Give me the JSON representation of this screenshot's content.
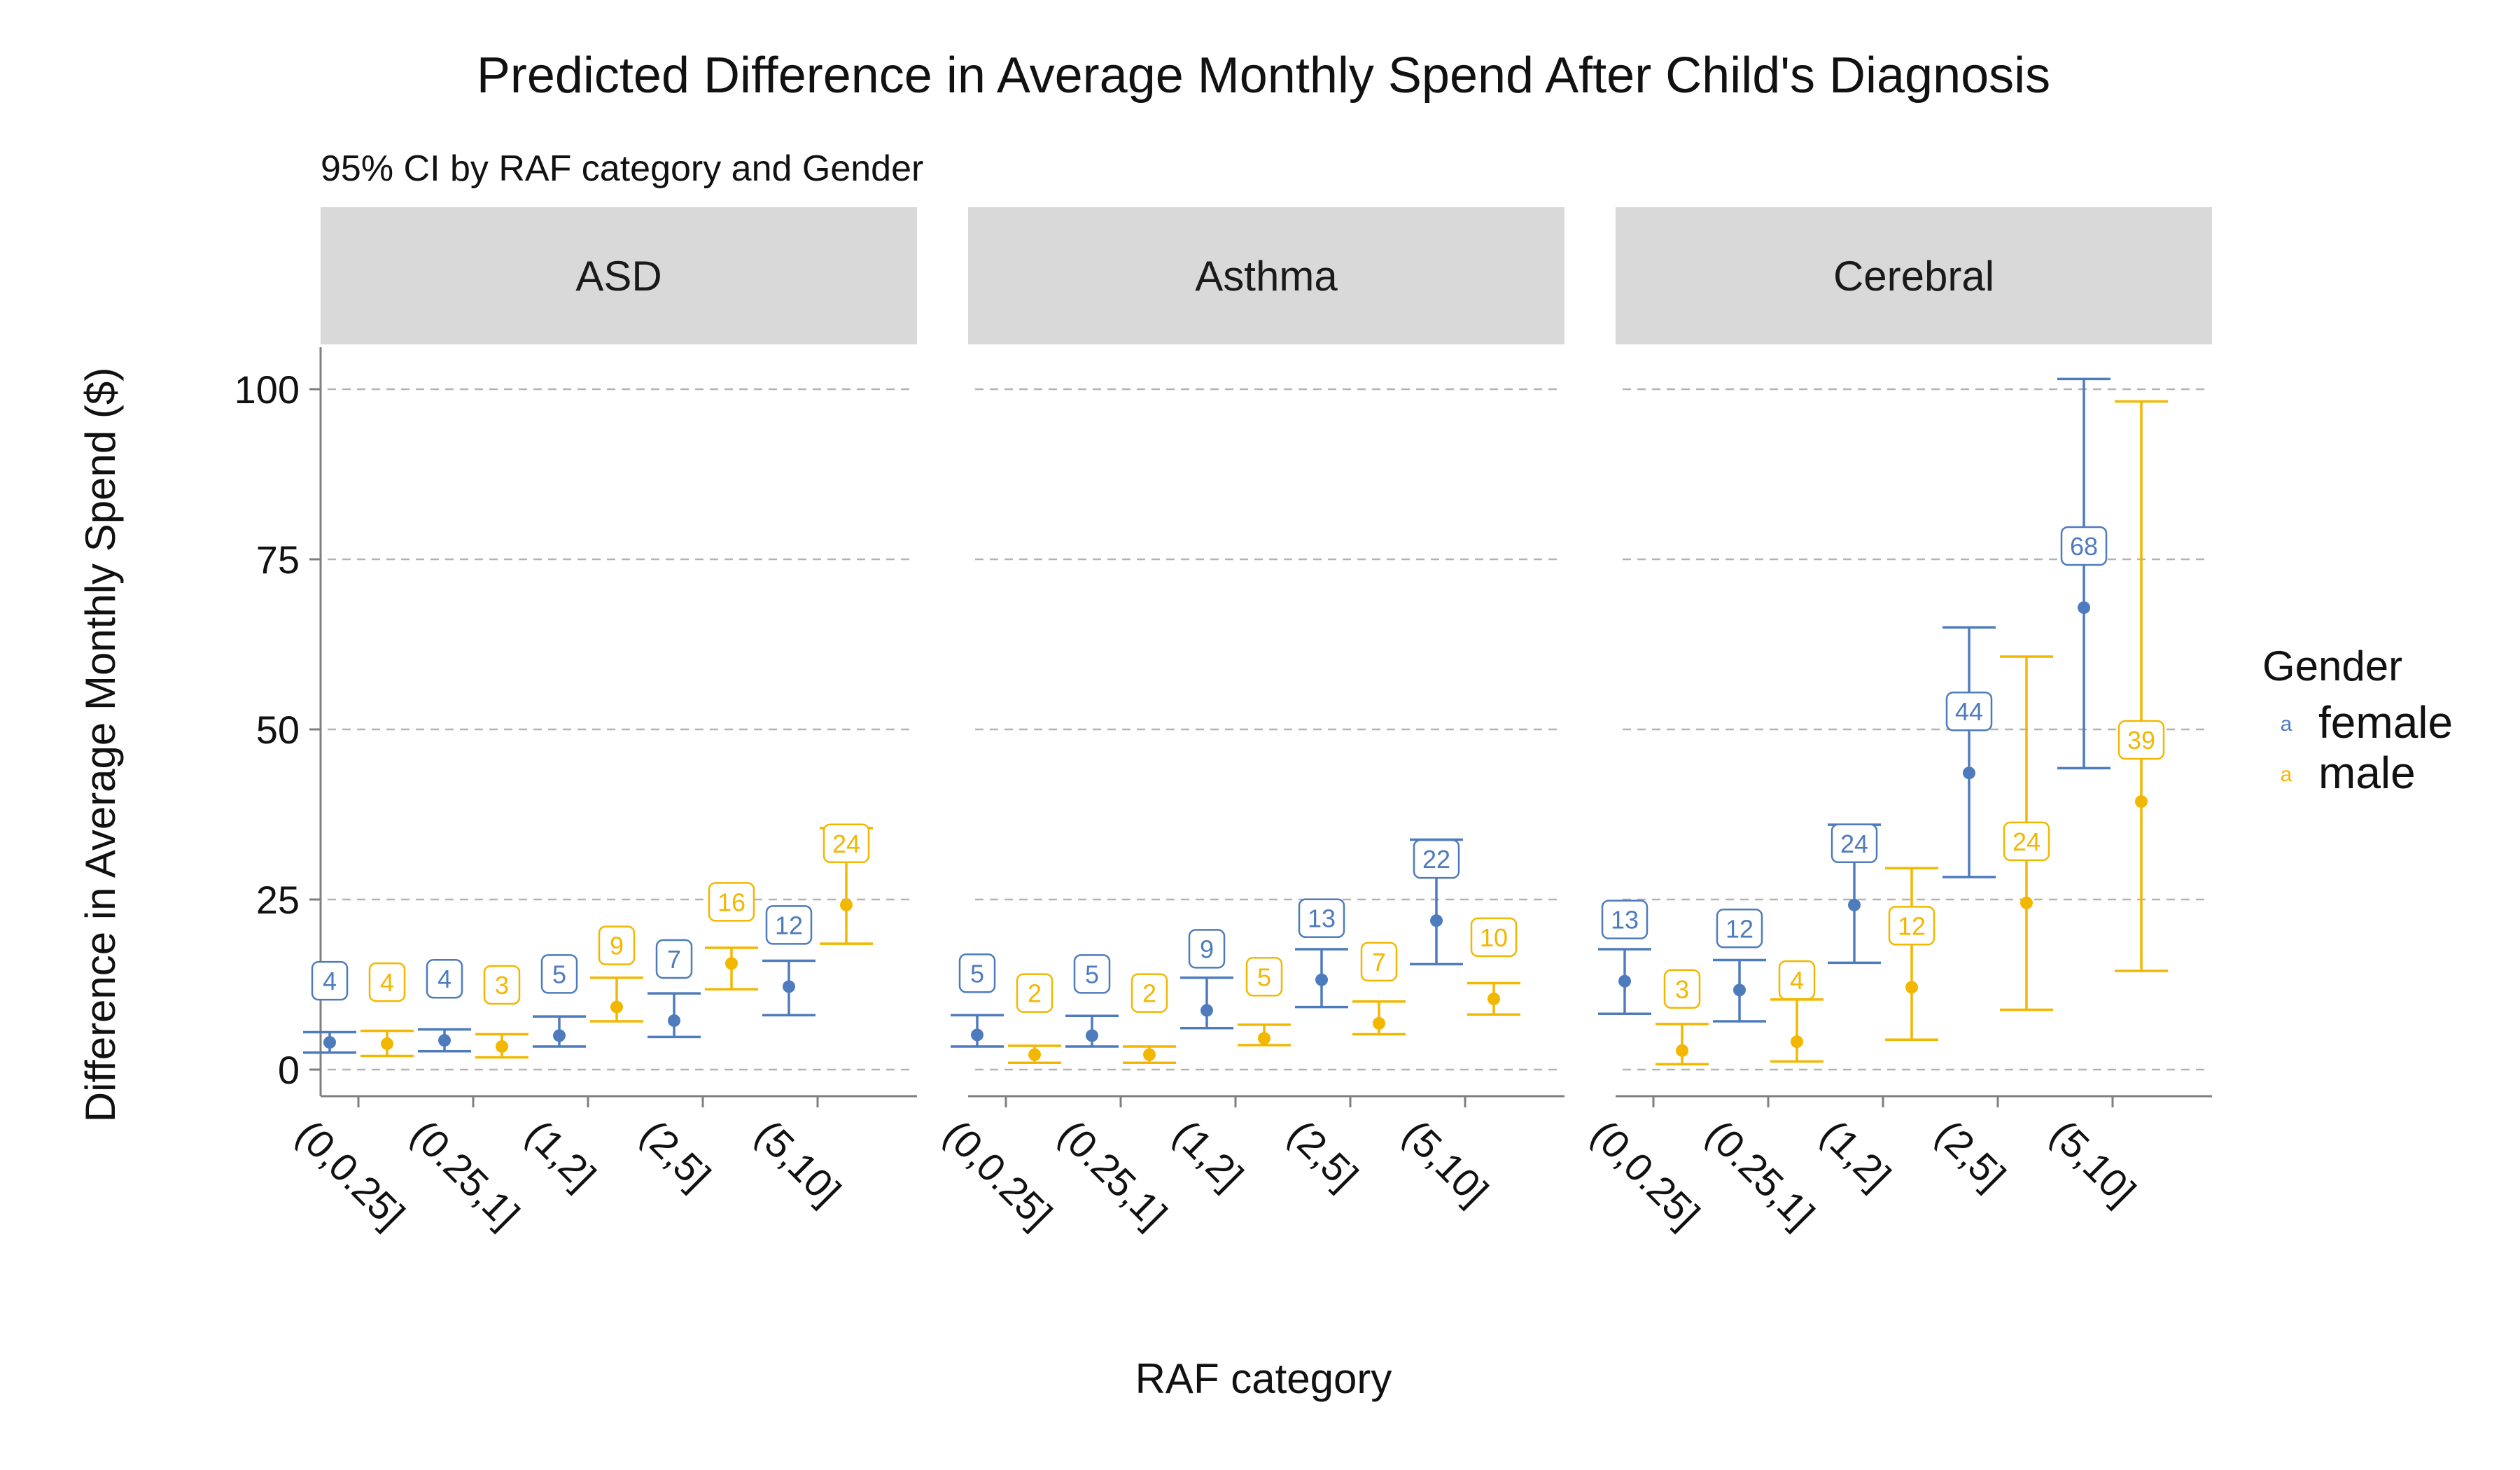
{
  "chart_data": {
    "type": "errorbar",
    "title": "Predicted Difference in Average Monthly Spend After Child's Diagnosis",
    "subtitle": "95% CI by RAF category and Gender",
    "xlabel": "RAF category",
    "ylabel": "Difference in Average Monthly Spend ($)",
    "ylim": [
      -4,
      106
    ],
    "yticks": [
      0,
      25,
      50,
      75,
      100
    ],
    "grid": "horizontal dashed",
    "categories": [
      "(0,0.25]",
      "(0.25,1]",
      "(1,2]",
      "(2,5]",
      "(5,10]"
    ],
    "legend": {
      "title": "Gender",
      "position": "right",
      "key_glyph": "a",
      "entries": [
        {
          "name": "female",
          "color": "#4e7bbd"
        },
        {
          "name": "male",
          "color": "#f2b701"
        }
      ]
    },
    "panels": [
      {
        "name": "ASD",
        "series": [
          {
            "name": "female",
            "color": "#4e7bbd",
            "points": [
              {
                "category": "(0,0.25]",
                "estimate": 4,
                "lower": 2.5,
                "upper": 5.5,
                "label": "4"
              },
              {
                "category": "(0.25,1]",
                "estimate": 4.3,
                "lower": 2.7,
                "upper": 5.9,
                "label": "4"
              },
              {
                "category": "(1,2]",
                "estimate": 5,
                "lower": 3.4,
                "upper": 7.8,
                "label": "5"
              },
              {
                "category": "(2,5]",
                "estimate": 7.2,
                "lower": 4.8,
                "upper": 11.2,
                "label": "7"
              },
              {
                "category": "(5,10]",
                "estimate": 12.2,
                "lower": 8,
                "upper": 16,
                "label": "12"
              }
            ]
          },
          {
            "name": "male",
            "color": "#f2b701",
            "points": [
              {
                "category": "(0,0.25]",
                "estimate": 3.8,
                "lower": 2,
                "upper": 5.7,
                "label": "4"
              },
              {
                "category": "(0.25,1]",
                "estimate": 3.4,
                "lower": 1.8,
                "upper": 5.2,
                "label": "3"
              },
              {
                "category": "(1,2]",
                "estimate": 9.2,
                "lower": 7.1,
                "upper": 13.5,
                "label": "9"
              },
              {
                "category": "(2,5]",
                "estimate": 15.6,
                "lower": 11.8,
                "upper": 17.9,
                "label": "16"
              },
              {
                "category": "(5,10]",
                "estimate": 24.2,
                "lower": 18.5,
                "upper": 35.5,
                "label": "24"
              }
            ]
          }
        ]
      },
      {
        "name": "Asthma",
        "series": [
          {
            "name": "female",
            "color": "#4e7bbd",
            "points": [
              {
                "category": "(0,0.25]",
                "estimate": 5.1,
                "lower": 3.4,
                "upper": 8,
                "label": "5"
              },
              {
                "category": "(0.25,1]",
                "estimate": 5,
                "lower": 3.4,
                "upper": 7.9,
                "label": "5"
              },
              {
                "category": "(1,2]",
                "estimate": 8.7,
                "lower": 6.1,
                "upper": 13.5,
                "label": "9"
              },
              {
                "category": "(2,5]",
                "estimate": 13.2,
                "lower": 9.2,
                "upper": 17.7,
                "label": "13"
              },
              {
                "category": "(5,10]",
                "estimate": 21.9,
                "lower": 15.5,
                "upper": 33.8,
                "label": "22"
              }
            ]
          },
          {
            "name": "male",
            "color": "#f2b701",
            "points": [
              {
                "category": "(0,0.25]",
                "estimate": 2.2,
                "lower": 1,
                "upper": 3.5,
                "label": "2"
              },
              {
                "category": "(0.25,1]",
                "estimate": 2.2,
                "lower": 1,
                "upper": 3.4,
                "label": "2"
              },
              {
                "category": "(1,2]",
                "estimate": 4.6,
                "lower": 3.6,
                "upper": 6.6,
                "label": "5"
              },
              {
                "category": "(2,5]",
                "estimate": 6.8,
                "lower": 5.2,
                "upper": 10,
                "label": "7"
              },
              {
                "category": "(5,10]",
                "estimate": 10.4,
                "lower": 8.1,
                "upper": 12.7,
                "label": "10"
              }
            ]
          }
        ]
      },
      {
        "name": "Cerebral",
        "series": [
          {
            "name": "female",
            "color": "#4e7bbd",
            "points": [
              {
                "category": "(0,0.25]",
                "estimate": 13,
                "lower": 8.2,
                "upper": 17.7,
                "label": "13"
              },
              {
                "category": "(0.25,1]",
                "estimate": 11.7,
                "lower": 7.1,
                "upper": 16.1,
                "label": "12"
              },
              {
                "category": "(1,2]",
                "estimate": 24.2,
                "lower": 15.7,
                "upper": 36,
                "label": "24"
              },
              {
                "category": "(2,5]",
                "estimate": 43.6,
                "lower": 28.3,
                "upper": 65,
                "label": "44"
              },
              {
                "category": "(5,10]",
                "estimate": 67.9,
                "lower": 44.3,
                "upper": 101.5,
                "label": "68"
              }
            ]
          },
          {
            "name": "male",
            "color": "#f2b701",
            "points": [
              {
                "category": "(0,0.25]",
                "estimate": 2.8,
                "lower": 0.8,
                "upper": 6.7,
                "label": "3"
              },
              {
                "category": "(0.25,1]",
                "estimate": 4.1,
                "lower": 1.2,
                "upper": 10.3,
                "label": "4"
              },
              {
                "category": "(1,2]",
                "estimate": 12.1,
                "lower": 4.4,
                "upper": 29.6,
                "label": "12"
              },
              {
                "category": "(2,5]",
                "estimate": 24.5,
                "lower": 8.8,
                "upper": 60.7,
                "label": "24"
              },
              {
                "category": "(5,10]",
                "estimate": 39.4,
                "lower": 14.5,
                "upper": 98.2,
                "label": "39"
              }
            ]
          }
        ]
      }
    ]
  }
}
